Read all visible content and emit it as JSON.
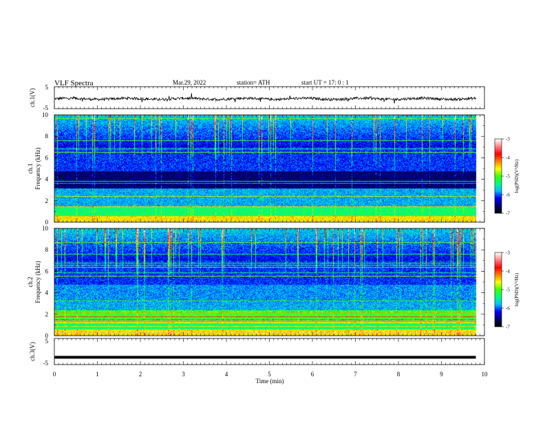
{
  "header": {
    "title": "VLF  Spectra",
    "date": "Mar.29, 2022",
    "station": "station= ATH",
    "start_ut": "start  UT  =    17: 0   : 1"
  },
  "chart_data": [
    {
      "id": "ch1-waveform",
      "type": "line",
      "ylabel": "ch.1(V)",
      "yticks": [
        "5",
        "-5"
      ],
      "ylim": [
        -5,
        5
      ],
      "xlim": [
        0,
        10
      ],
      "series_color": "#000000",
      "data_extent_min": 9.8,
      "baseline_v": -0.5,
      "noise_amplitude_v": 1.2
    },
    {
      "id": "ch1-spectrogram",
      "type": "heatmap",
      "ylabel": "ch.1\nFrequency (kHz)",
      "ylabel_line1": "ch.1",
      "ylabel_line2": "Frequency (kHz)",
      "yticks": [
        "0",
        "2",
        "4",
        "6",
        "8",
        "10"
      ],
      "ylim": [
        0,
        10
      ],
      "xlim": [
        0,
        10
      ],
      "colorbar": {
        "label": "log(PSD)(V²/Hz)",
        "ticks": [
          "-3",
          "-4",
          "-5",
          "-6",
          "-7"
        ],
        "range": [
          -7,
          -3
        ],
        "colors": [
          "#000000",
          "#000070",
          "#0000ff",
          "#00c0ff",
          "#00ff80",
          "#40ff00",
          "#ffff00",
          "#ff8000",
          "#ff0000",
          "#ff8080",
          "#ffffff"
        ]
      }
    },
    {
      "id": "ch2-spectrogram",
      "type": "heatmap",
      "ylabel": "ch.2\nFrequency (kHz)",
      "ylabel_line1": "ch.2",
      "ylabel_line2": "Frequency (kHz)",
      "yticks": [
        "0",
        "2",
        "4",
        "6",
        "8",
        "10"
      ],
      "ylim": [
        0,
        10
      ],
      "xlim": [
        0,
        10
      ],
      "colorbar": {
        "label": "log(PSD)(V²/Hz)",
        "ticks": [
          "-3",
          "-4",
          "-5",
          "-6",
          "-7"
        ],
        "range": [
          -7,
          -3
        ]
      }
    },
    {
      "id": "ch3-waveform",
      "type": "line",
      "ylabel": "ch.3(V)",
      "yticks": [
        "5",
        "-5"
      ],
      "ylim": [
        -5,
        5
      ],
      "xlim": [
        0,
        10
      ],
      "series_color": "#000000",
      "data_extent_min": 9.8,
      "baseline_v": -2.2
    }
  ],
  "xaxis": {
    "label": "Time  (min)",
    "ticks": [
      "0",
      "1",
      "2",
      "3",
      "4",
      "5",
      "6",
      "7",
      "8",
      "9",
      "10"
    ],
    "range": [
      0,
      10
    ]
  }
}
